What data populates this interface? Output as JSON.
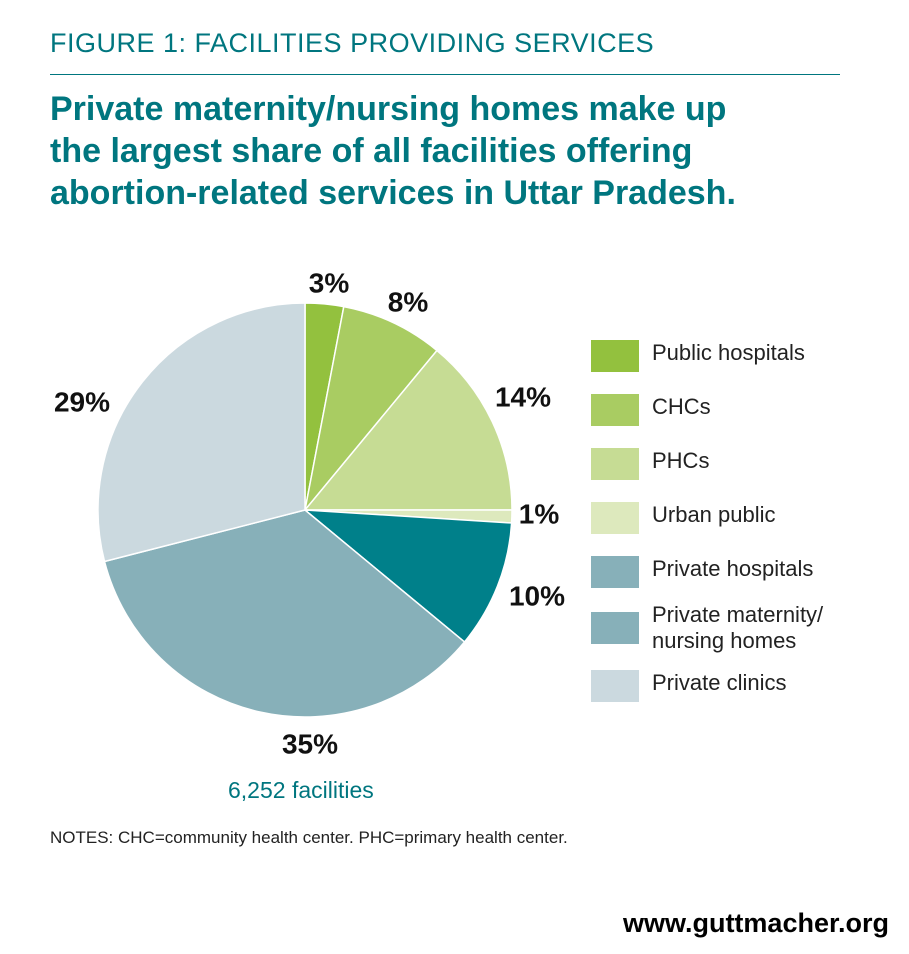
{
  "figure_label": "FIGURE 1: FACILITIES PROVIDING SERVICES",
  "headline_lines": [
    "Private maternity/nursing homes make up",
    "the largest share of all facilities offering",
    "abortion-related services in Uttar Pradesh."
  ],
  "total_label": "6,252 facilities",
  "notes": "NOTES: CHC=community health center. PHC=primary health center.",
  "source_url": "www.guttmacher.org",
  "chart_data": {
    "type": "pie",
    "title": "Private maternity/nursing homes make up the largest share of all facilities offering abortion-related services in Uttar Pradesh.",
    "categories": [
      "Public hospitals",
      "CHCs",
      "PHCs",
      "Urban public",
      "Private hospitals",
      "Private maternity/ nursing homes",
      "Private clinics"
    ],
    "values": [
      3,
      8,
      14,
      1,
      10,
      35,
      29
    ],
    "value_labels": [
      "3%",
      "8%",
      "14%",
      "1%",
      "10%",
      "35%",
      "29%"
    ],
    "colors": [
      "#93c13e",
      "#a9cc62",
      "#c6dc94",
      "#dde9bd",
      "#00808a",
      "#87b0b9",
      "#cbd9df"
    ],
    "legend_swatch_colors": [
      "#93c13e",
      "#a9cc62",
      "#c6dc94",
      "#dde9bd",
      "#87b0b9",
      "#87b0b9",
      "#cbd9df"
    ],
    "legend_position": "right",
    "total_label": "6,252 facilities"
  }
}
